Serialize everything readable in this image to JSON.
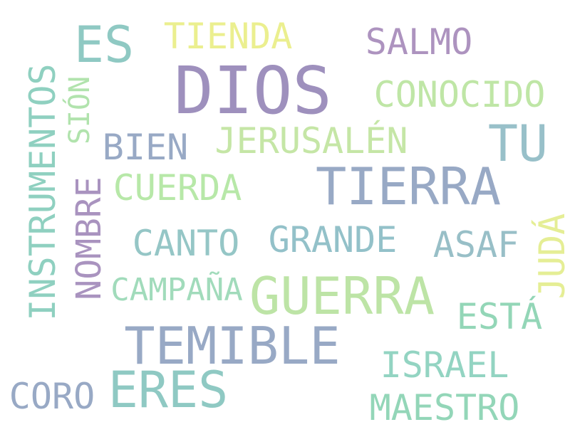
{
  "words": [
    {
      "text": "DIOS",
      "color": "#9e90bd"
    },
    {
      "text": "TIERRA",
      "color": "#98a9c5"
    },
    {
      "text": "GUERRA",
      "color": "#bde4a6"
    },
    {
      "text": "TEMIBLE",
      "color": "#98a9c5"
    },
    {
      "text": "ERES",
      "color": "#8fc9c3"
    },
    {
      "text": "ES",
      "color": "#8fc9c3"
    },
    {
      "text": "TU",
      "color": "#98c0c9"
    },
    {
      "text": "INSTRUMENTOS",
      "color": "#8fd0c0"
    },
    {
      "text": "NOMBRE",
      "color": "#a993bf"
    },
    {
      "text": "JERUSALÉN",
      "color": "#c5e6a6"
    },
    {
      "text": "CONOCIDO",
      "color": "#bfe6a6"
    },
    {
      "text": "TIENDA",
      "color": "#ebef8f"
    },
    {
      "text": "SALMO",
      "color": "#ad93bf"
    },
    {
      "text": "BIEN",
      "color": "#98a9c5"
    },
    {
      "text": "CUERDA",
      "color": "#b7e8a8"
    },
    {
      "text": "CANTO",
      "color": "#95c6c6"
    },
    {
      "text": "GRANDE",
      "color": "#93c1c9"
    },
    {
      "text": "ASAF",
      "color": "#98bfc7"
    },
    {
      "text": "JUDÁ",
      "color": "#e5ee95"
    },
    {
      "text": "CAMPAÑA",
      "color": "#a1dbbb"
    },
    {
      "text": "ESTÁ",
      "color": "#93d6b7"
    },
    {
      "text": "ISRAEL",
      "color": "#93d4c2"
    },
    {
      "text": "CORO",
      "color": "#98a9c5"
    },
    {
      "text": "MAESTRO",
      "color": "#93d6b8"
    },
    {
      "text": "SIÓN",
      "color": "#b1e3ad"
    }
  ]
}
